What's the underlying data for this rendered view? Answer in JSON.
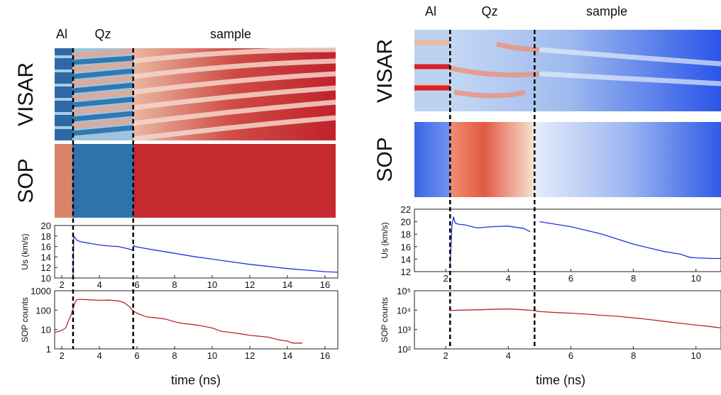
{
  "chart_data": [
    {
      "type": "line",
      "ylabel": "Us (km/s)",
      "color": "#2030e0",
      "x": [
        2.6,
        2.63,
        2.68,
        2.8,
        3.0,
        3.5,
        4.0,
        4.5,
        5.0,
        5.5,
        5.8,
        5.82,
        5.9,
        6.5,
        7,
        8,
        9,
        10,
        11,
        12,
        13,
        14,
        15,
        16,
        16.68
      ],
      "values": [
        10,
        18,
        17.8,
        17.2,
        16.9,
        16.6,
        16.3,
        16.1,
        16.0,
        15.6,
        15.3,
        16.2,
        16.0,
        15.6,
        15.3,
        14.7,
        14.1,
        13.6,
        13.1,
        12.6,
        12.2,
        11.8,
        11.5,
        11.2,
        11.1
      ],
      "xlim": [
        1.62,
        16.68
      ],
      "ylim": [
        10,
        20
      ],
      "xticks": [
        2,
        4,
        6,
        8,
        10,
        12,
        14,
        16
      ],
      "yticks": [
        10,
        12,
        14,
        16,
        18,
        20
      ],
      "log_y": false
    },
    {
      "type": "line",
      "ylabel": "SOP counts",
      "color": "#b8262a",
      "x": [
        1.62,
        2.0,
        2.2,
        2.5,
        2.7,
        2.8,
        3.0,
        3.5,
        4.0,
        4.5,
        5.0,
        5.3,
        5.6,
        5.8,
        6.0,
        6.5,
        7,
        7.5,
        8,
        8.5,
        9,
        9.5,
        10,
        10.5,
        11,
        11.5,
        12,
        12.5,
        13,
        13.5,
        14,
        14.3,
        14.8
      ],
      "values": [
        7,
        9,
        12,
        60,
        250,
        350,
        360,
        340,
        320,
        330,
        300,
        250,
        150,
        90,
        70,
        45,
        40,
        35,
        25,
        20,
        18,
        15,
        12,
        8,
        7,
        6,
        5,
        4.5,
        4,
        3,
        2.5,
        2,
        2
      ],
      "xlim": [
        1.62,
        16.68
      ],
      "ylim": [
        1,
        1000
      ],
      "xticks": [
        2,
        4,
        6,
        8,
        10,
        12,
        14,
        16
      ],
      "yticks": [
        1,
        10,
        100,
        1000
      ],
      "log_y": true
    },
    {
      "type": "line",
      "ylabel": "Us (km/s)",
      "color": "#2030e0",
      "x": [
        2.14,
        2.2,
        2.25,
        2.3,
        2.4,
        2.6,
        3.0,
        3.5,
        4.0,
        4.5,
        4.7,
        4.85,
        5.0,
        5.5,
        6,
        6.5,
        7,
        7.5,
        8,
        8.5,
        9,
        9.5,
        9.8,
        10,
        10.5,
        10.8
      ],
      "values": [
        13,
        19.5,
        20.8,
        19.8,
        19.6,
        19.5,
        19.0,
        19.2,
        19.3,
        18.9,
        18.4,
        null,
        20,
        19.6,
        19.2,
        18.6,
        18,
        17.2,
        16.4,
        15.8,
        15.2,
        14.8,
        14.3,
        14.2,
        14.1,
        14.1
      ],
      "xlim": [
        1.0,
        10.8
      ],
      "ylim": [
        12,
        22
      ],
      "xticks": [
        2,
        4,
        6,
        8,
        10
      ],
      "yticks": [
        12,
        14,
        16,
        18,
        20,
        22
      ],
      "log_y": false
    },
    {
      "type": "line",
      "ylabel": "SOP counts",
      "color": "#b8262a",
      "x": [
        2.14,
        2.5,
        3,
        3.5,
        4,
        4.5,
        4.8,
        5,
        5.5,
        6,
        6.5,
        7,
        7.5,
        8,
        8.5,
        9,
        9.5,
        10,
        10.5,
        10.8
      ],
      "values": [
        9500,
        10000,
        10500,
        11000,
        11500,
        10500,
        9500,
        8500,
        7500,
        7000,
        6200,
        5400,
        4800,
        4000,
        3300,
        2600,
        2100,
        1700,
        1400,
        1200
      ],
      "xlim": [
        1.0,
        10.8
      ],
      "ylim": [
        100,
        100000
      ],
      "xticks": [
        2,
        4,
        6,
        8,
        10
      ],
      "yticks": [
        {
          "value": 100,
          "label": "10²"
        },
        {
          "value": 1000,
          "label": "10³"
        },
        {
          "value": 10000,
          "label": "10⁴"
        },
        {
          "value": 100000,
          "label": "10⁵"
        }
      ],
      "log_y": true
    }
  ],
  "panels": [
    {
      "regions": [
        "Al",
        "Qz",
        "sample"
      ],
      "images": [
        "VISAR",
        "SOP"
      ],
      "boundaries": [
        2.6,
        5.8
      ],
      "xlabel": "time (ns)"
    },
    {
      "regions": [
        "Al",
        "Qz",
        "sample"
      ],
      "images": [
        "VISAR",
        "SOP"
      ],
      "boundaries": [
        2.14,
        4.84
      ],
      "xlabel": "time (ns)"
    }
  ]
}
